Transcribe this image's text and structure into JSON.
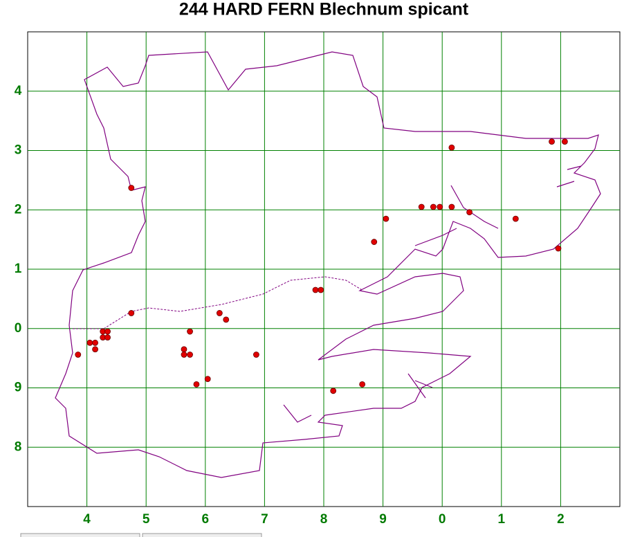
{
  "chart_data": {
    "type": "scatter",
    "title": "244 HARD FERN Blechnum spicant",
    "x": [
      4.75,
      4.75,
      4.27,
      4.35,
      4.27,
      4.35,
      4.05,
      4.14,
      4.14,
      3.85,
      5.74,
      5.64,
      5.64,
      5.74,
      5.85,
      6.04,
      6.24,
      6.35,
      6.86,
      7.86,
      7.95,
      8.16,
      8.65,
      8.85,
      9.05,
      9.65,
      9.85,
      9.96,
      10.16,
      10.16,
      10.46,
      11.24,
      11.85,
      12.07,
      11.96
    ],
    "values": [
      12.37,
      10.26,
      9.95,
      9.95,
      9.85,
      9.85,
      9.76,
      9.76,
      9.65,
      9.56,
      9.95,
      9.65,
      9.56,
      9.56,
      9.06,
      9.15,
      10.26,
      10.15,
      9.56,
      10.65,
      10.65,
      8.95,
      9.06,
      11.46,
      11.85,
      12.05,
      12.05,
      12.05,
      12.05,
      13.05,
      11.96,
      11.85,
      13.15,
      13.15,
      11.35
    ],
    "color": "#e00000",
    "xlim": [
      3,
      13
    ],
    "ylim": [
      7,
      15
    ],
    "xticks": [
      4,
      5,
      6,
      7,
      8,
      9,
      {
        "value": 10,
        "label": "0"
      },
      {
        "value": 11,
        "label": "1"
      },
      {
        "value": 12,
        "label": "2"
      }
    ],
    "yticks": [
      8,
      9,
      {
        "value": 10,
        "label": "0"
      },
      {
        "value": 11,
        "label": "1"
      },
      {
        "value": 12,
        "label": "2"
      },
      {
        "value": 13,
        "label": "3"
      },
      {
        "value": 14,
        "label": "4"
      }
    ],
    "grid": true
  }
}
